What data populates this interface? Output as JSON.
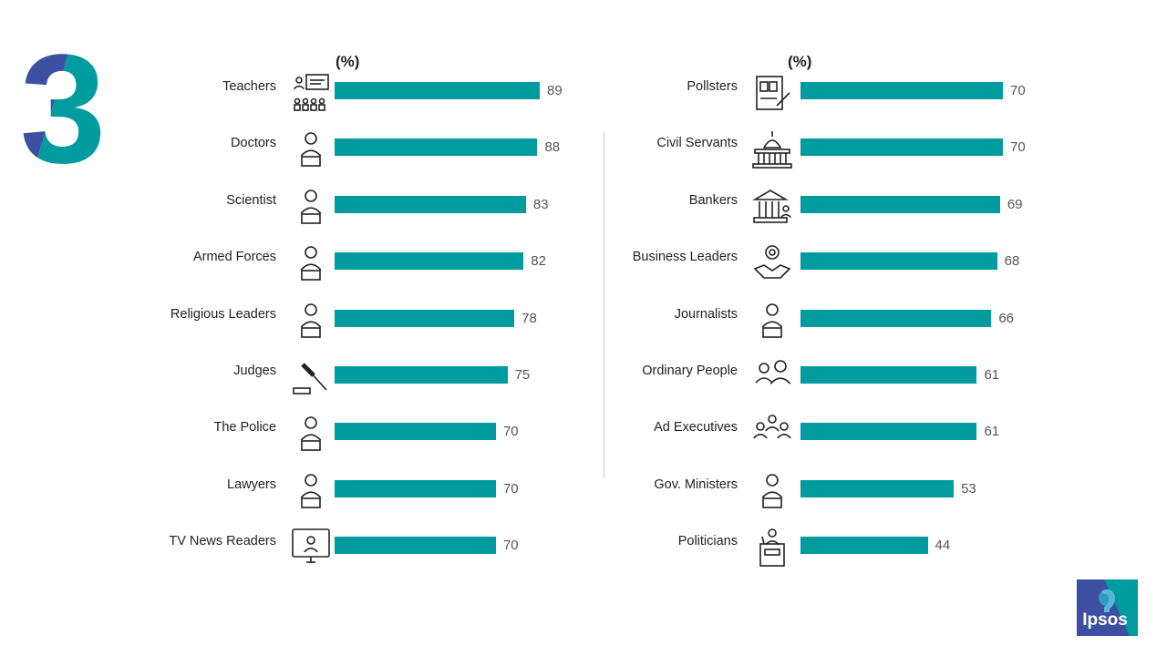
{
  "page_number": "3",
  "brand": {
    "logo_text": "Ipsos",
    "teal": "#009b9e",
    "navy": "#3d4fa0"
  },
  "chart_data": [
    {
      "type": "bar",
      "orientation": "horizontal",
      "unit_label": "(%)",
      "categories": [
        "Teachers",
        "Doctors",
        "Scientist",
        "Armed Forces",
        "Religious Leaders",
        "Judges",
        "The Police",
        "Lawyers",
        "TV News Readers"
      ],
      "icons": [
        "teacher-icon",
        "doctor-icon",
        "scientist-icon",
        "soldier-icon",
        "religious-leader-icon",
        "gavel-icon",
        "police-officer-icon",
        "lawyer-icon",
        "news-reader-icon"
      ],
      "values": [
        89,
        88,
        83,
        82,
        78,
        75,
        70,
        70,
        70
      ],
      "color": "#009b9e"
    },
    {
      "type": "bar",
      "orientation": "horizontal",
      "unit_label": "(%)",
      "categories": [
        "Pollsters",
        "Civil Servants",
        "Bankers",
        "Business Leaders",
        "Journalists",
        "Ordinary People",
        "Ad Executives",
        "Gov. Ministers",
        "Politicians"
      ],
      "icons": [
        "survey-clipboard-icon",
        "capitol-building-icon",
        "bank-icon",
        "handshake-gear-icon",
        "journalist-icon",
        "people-icon",
        "group-icon",
        "minister-icon",
        "podium-speaker-icon"
      ],
      "values": [
        70,
        70,
        69,
        68,
        66,
        61,
        61,
        53,
        44
      ],
      "color": "#009b9e"
    }
  ]
}
